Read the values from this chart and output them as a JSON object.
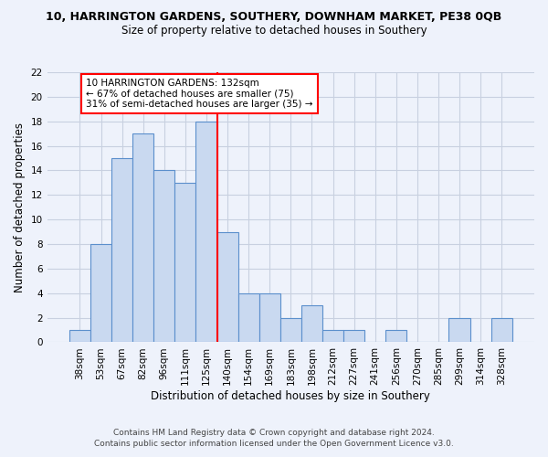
{
  "title": "10, HARRINGTON GARDENS, SOUTHERY, DOWNHAM MARKET, PE38 0QB",
  "subtitle": "Size of property relative to detached houses in Southery",
  "xlabel": "Distribution of detached houses by size in Southery",
  "ylabel": "Number of detached properties",
  "bins": [
    "38sqm",
    "53sqm",
    "67sqm",
    "82sqm",
    "96sqm",
    "111sqm",
    "125sqm",
    "140sqm",
    "154sqm",
    "169sqm",
    "183sqm",
    "198sqm",
    "212sqm",
    "227sqm",
    "241sqm",
    "256sqm",
    "270sqm",
    "285sqm",
    "299sqm",
    "314sqm",
    "328sqm"
  ],
  "values": [
    1,
    8,
    15,
    17,
    14,
    13,
    18,
    9,
    4,
    4,
    2,
    3,
    1,
    1,
    0,
    1,
    0,
    0,
    2,
    0,
    2
  ],
  "bar_color": "#c9d9f0",
  "bar_edge_color": "#5b8fcc",
  "vline_x_idx": 6.5,
  "annotation_text": "10 HARRINGTON GARDENS: 132sqm\n← 67% of detached houses are smaller (75)\n31% of semi-detached houses are larger (35) →",
  "annotation_box_color": "white",
  "annotation_box_edge": "red",
  "vline_color": "red",
  "ylim": [
    0,
    22
  ],
  "yticks": [
    0,
    2,
    4,
    6,
    8,
    10,
    12,
    14,
    16,
    18,
    20,
    22
  ],
  "footer1": "Contains HM Land Registry data © Crown copyright and database right 2024.",
  "footer2": "Contains public sector information licensed under the Open Government Licence v3.0.",
  "bg_color": "#eef2fb",
  "grid_color": "#c8d0e0",
  "title_fontsize": 9,
  "subtitle_fontsize": 8.5,
  "ylabel_fontsize": 8.5,
  "xlabel_fontsize": 8.5,
  "tick_fontsize": 7.5,
  "annotation_fontsize": 7.5,
  "footer_fontsize": 6.5
}
